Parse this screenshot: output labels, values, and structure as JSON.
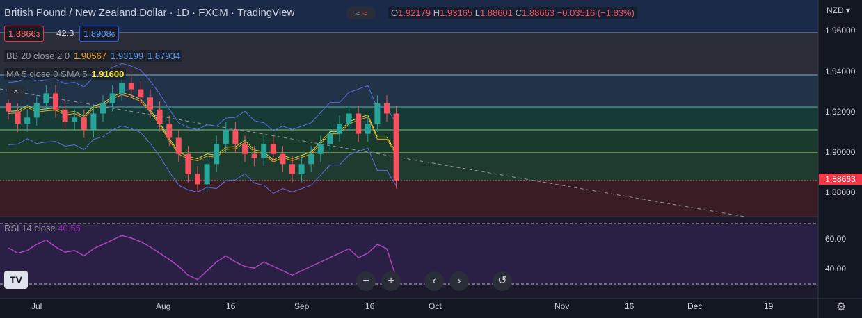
{
  "header": {
    "title": "British Pound / New Zealand Dollar · 1D · FXCM · TradingView",
    "ohlc": {
      "o_label": "O",
      "o": "1.92179",
      "h_label": "H",
      "h": "1.93165",
      "l_label": "L",
      "l": "1.88601",
      "c_label": "C",
      "c": "1.88663",
      "change": "−0.03516 (−1.83%)"
    },
    "sell_price_parts": [
      "1.8866",
      "3"
    ],
    "spread": "42.3",
    "buy_price_parts": [
      "1.8908",
      "6"
    ]
  },
  "indicators": {
    "bb_label": "BB 20 close 2 0",
    "bb_basis": "1.90567",
    "bb_upper": "1.93199",
    "bb_lower": "1.87934",
    "ma_label": "MA 5 close 0 SMA 5",
    "ma_value": "1.91600",
    "rsi_label": "RSI 14 close",
    "rsi_value": "40.55"
  },
  "axis": {
    "currency": "NZD",
    "last_price": "1.88663",
    "price_ticks": [
      "1.96000",
      "1.94000",
      "1.92000",
      "1.90000",
      "1.88000"
    ],
    "rsi_ticks": [
      "60.00",
      "40.00"
    ],
    "time_ticks": [
      "Jul",
      "Aug",
      "16",
      "Sep",
      "16",
      "Oct",
      "Nov",
      "16",
      "Dec",
      "19"
    ]
  },
  "controls": {
    "zoom_out": "−",
    "zoom_in": "+",
    "scroll_left": "‹",
    "scroll_right": "›",
    "reset": "↺",
    "collapse": "^",
    "toggle_a": "≈",
    "toggle_b": "≈",
    "logo": "TV",
    "settings": "⚙"
  },
  "colors": {
    "up": "#26a69a",
    "down": "#f7525f",
    "bb": "#5b6ee8",
    "basis": "#f5a623",
    "ma": "#d4e157",
    "rsi": "#ab47bc"
  },
  "chart_data": {
    "type": "candlestick",
    "symbol": "GBPNZD",
    "interval": "1D",
    "last_close": 1.88663,
    "rsi_last": 40.55,
    "approx_close_series": [
      1.921,
      1.915,
      1.918,
      1.925,
      1.93,
      1.922,
      1.916,
      1.918,
      1.912,
      1.92,
      1.925,
      1.93,
      1.935,
      1.932,
      1.928,
      1.922,
      1.915,
      1.908,
      1.9,
      1.89,
      1.885,
      1.895,
      1.905,
      1.912,
      1.905,
      1.9,
      1.898,
      1.905,
      1.9,
      1.895,
      1.89,
      1.895,
      1.9,
      1.905,
      1.91,
      1.915,
      1.92,
      1.91,
      1.915,
      1.925,
      1.92,
      1.887
    ]
  }
}
